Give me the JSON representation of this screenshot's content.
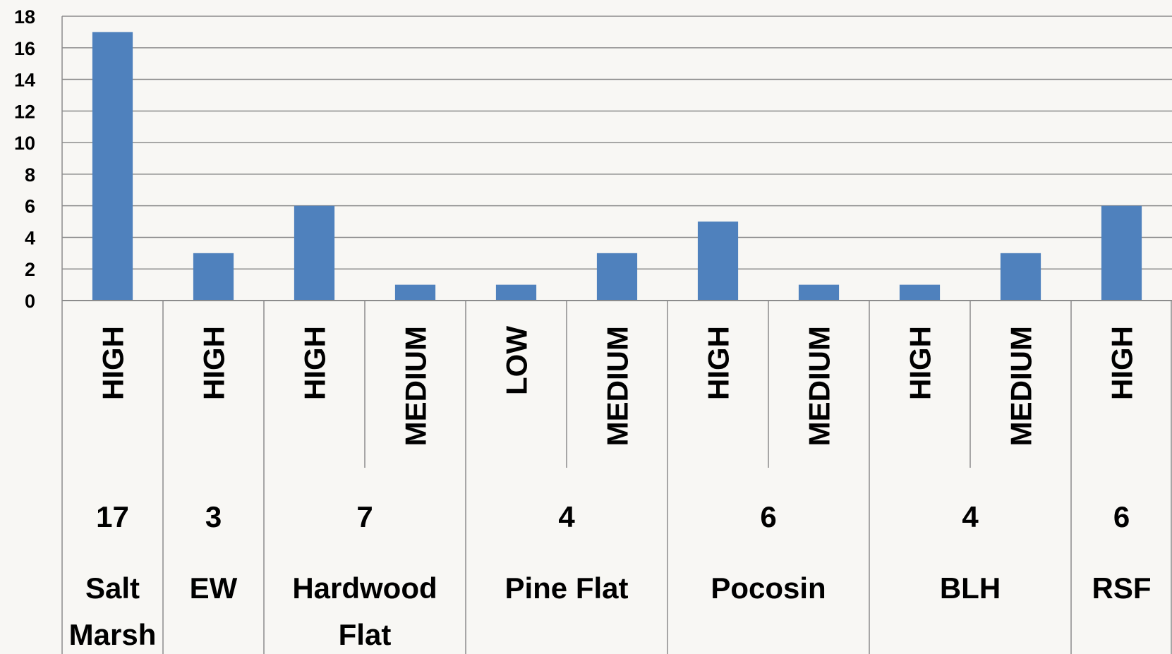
{
  "chart_data": {
    "type": "bar",
    "ylim": [
      0,
      18
    ],
    "y_ticks": [
      "0",
      "2",
      "4",
      "6",
      "8",
      "10",
      "12",
      "14",
      "16",
      "18"
    ],
    "grid": true,
    "legend": "none",
    "colors": {
      "bar": "#4f81bd",
      "grid": "#8c8c8c",
      "background": "#f8f7f4"
    },
    "groups": [
      {
        "label": [
          "Salt",
          "Marsh"
        ],
        "total": "17",
        "bars": [
          {
            "level": "HIGH",
            "value": 17
          }
        ]
      },
      {
        "label": [
          "EW"
        ],
        "total": "3",
        "bars": [
          {
            "level": "HIGH",
            "value": 3
          }
        ]
      },
      {
        "label": [
          "Hardwood",
          "Flat"
        ],
        "total": "7",
        "bars": [
          {
            "level": "HIGH",
            "value": 6
          },
          {
            "level": "MEDIUM",
            "value": 1
          }
        ]
      },
      {
        "label": [
          "Pine Flat"
        ],
        "total": "4",
        "bars": [
          {
            "level": "LOW",
            "value": 1
          },
          {
            "level": "MEDIUM",
            "value": 3
          }
        ]
      },
      {
        "label": [
          "Pocosin"
        ],
        "total": "6",
        "bars": [
          {
            "level": "HIGH",
            "value": 5
          },
          {
            "level": "MEDIUM",
            "value": 1
          }
        ]
      },
      {
        "label": [
          "BLH"
        ],
        "total": "4",
        "bars": [
          {
            "level": "HIGH",
            "value": 1
          },
          {
            "level": "MEDIUM",
            "value": 3
          }
        ]
      },
      {
        "label": [
          "RSF"
        ],
        "total": "6",
        "bars": [
          {
            "level": "HIGH",
            "value": 6
          }
        ]
      }
    ]
  }
}
